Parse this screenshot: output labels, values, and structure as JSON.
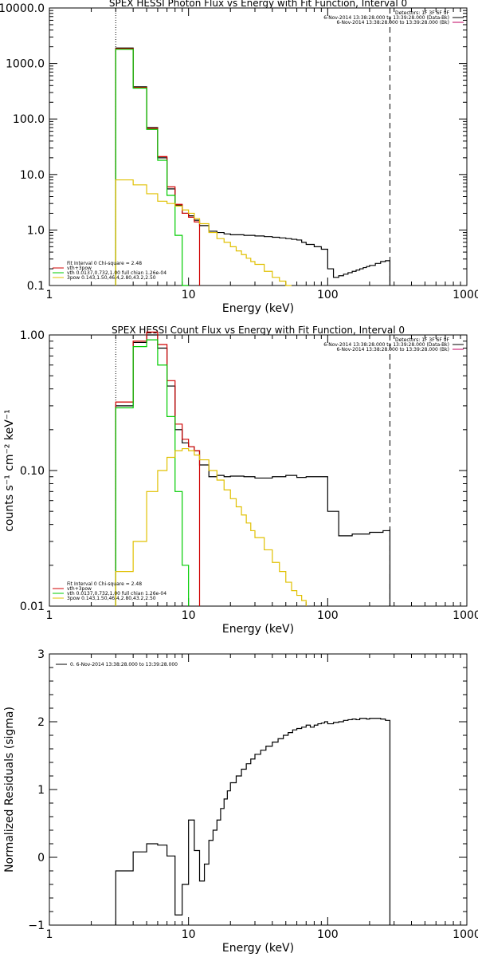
{
  "chart_data": [
    {
      "type": "line",
      "title": "SPEX HESSI Photon Flux vs Energy with Fit Function, Interval 0",
      "xlabel": "Energy (keV)",
      "ylabel": "",
      "xscale": "log",
      "yscale": "log",
      "xlim": [
        1,
        1000
      ],
      "ylim": [
        0.1,
        10000
      ],
      "xticks": [
        1,
        10,
        100,
        1000
      ],
      "xtick_labels": [
        "1",
        "10",
        "100",
        "1000"
      ],
      "yticks": [
        0.1,
        1,
        10,
        100,
        1000,
        10000
      ],
      "ytick_labels": [
        "0.1",
        "1.0",
        "10.0",
        "100.0",
        "1000.0",
        "10000.0"
      ],
      "vlines": [
        {
          "x": 3,
          "style": "dotted"
        },
        {
          "x": 280,
          "style": "dashed"
        }
      ],
      "legend_top": [
        "Detectors: 1F 3F 6F 9F",
        "6-Nov-2014 13:38:28.000 to 13:39:28.000 (Data-Bk)",
        "6-Nov-2014 13:38:28.000 to 13:39:28.000 (Bk)"
      ],
      "legend_bottom": [
        "Fit Interval 0   Chi-square = 2.48",
        "vth+3pow",
        "vth 0.0137,0.732,1.00  full chian 1.26e-04",
        "3pow 0.143,1.50,46.4,2.80,43.2,2.50"
      ],
      "series": [
        {
          "name": "Data-Bk",
          "color": "#000000",
          "step": true,
          "x": [
            3,
            4,
            5,
            6,
            7,
            8,
            9,
            10,
            11,
            12,
            14,
            16,
            18,
            20,
            25,
            30,
            35,
            40,
            45,
            50,
            55,
            60,
            65,
            70,
            80,
            90,
            100,
            110,
            120,
            130,
            140,
            150,
            160,
            170,
            180,
            190,
            200,
            220,
            240,
            260,
            280
          ],
          "y": [
            1900,
            380,
            70,
            20,
            5.5,
            2.8,
            2.0,
            1.8,
            1.5,
            1.2,
            0.95,
            0.9,
            0.85,
            0.82,
            0.8,
            0.78,
            0.76,
            0.74,
            0.72,
            0.7,
            0.68,
            0.66,
            0.6,
            0.55,
            0.5,
            0.45,
            0.2,
            0.14,
            0.15,
            0.16,
            0.17,
            0.18,
            0.19,
            0.2,
            0.21,
            0.22,
            0.23,
            0.25,
            0.27,
            0.28,
            0.28
          ]
        },
        {
          "name": "vth+3pow",
          "color": "#d00000",
          "step": true,
          "x": [
            3,
            4,
            5,
            6,
            7,
            8,
            9,
            10,
            11,
            12
          ],
          "y": [
            1850,
            370,
            68,
            21,
            6.0,
            2.9,
            2.0,
            1.7,
            1.4,
            1.1
          ]
        },
        {
          "name": "vth",
          "color": "#00cc00",
          "step": true,
          "x": [
            3,
            4,
            5,
            6,
            7,
            8,
            9,
            10
          ],
          "y": [
            1800,
            360,
            65,
            18,
            4.2,
            0.8,
            0.1,
            0.1
          ]
        },
        {
          "name": "3pow",
          "color": "#e0c000",
          "step": true,
          "x": [
            3,
            4,
            5,
            6,
            7,
            8,
            9,
            10,
            11,
            12,
            14,
            16,
            18,
            20,
            22,
            24,
            26,
            28,
            30,
            35,
            40,
            45,
            50,
            55
          ],
          "y": [
            8,
            6.5,
            4.5,
            3.3,
            3.0,
            2.7,
            2.3,
            2.0,
            1.6,
            1.3,
            0.9,
            0.7,
            0.6,
            0.5,
            0.42,
            0.36,
            0.31,
            0.27,
            0.24,
            0.18,
            0.14,
            0.12,
            0.1,
            0.1
          ]
        }
      ]
    },
    {
      "type": "line",
      "title": "SPEX HESSI Count Flux vs Energy with Fit Function, Interval 0",
      "xlabel": "Energy (keV)",
      "ylabel": "counts s⁻¹ cm⁻² keV⁻¹",
      "xscale": "log",
      "yscale": "log",
      "xlim": [
        1,
        1000
      ],
      "ylim": [
        0.01,
        1.0
      ],
      "xticks": [
        1,
        10,
        100,
        1000
      ],
      "xtick_labels": [
        "1",
        "10",
        "100",
        "1000"
      ],
      "yticks": [
        0.01,
        0.1,
        1.0
      ],
      "ytick_labels": [
        "0.01",
        "0.10",
        "1.00"
      ],
      "vlines": [
        {
          "x": 3,
          "style": "dotted"
        },
        {
          "x": 280,
          "style": "dashed"
        }
      ],
      "legend_top": [
        "Detectors: 1F 3F 6F 9F",
        "6-Nov-2014 13:38:28.000 to 13:39:28.000 (Data-Bk)",
        "6-Nov-2014 13:38:28.000 to 13:39:28.000 (Bk)"
      ],
      "legend_bottom": [
        "Fit Interval 0   Chi-square = 2.48",
        "vth+3pow",
        "vth 0.0137,0.732,1.00  full chian 1.26e-04",
        "3pow 0.143,1.50,46.4,2.80,43.2,2.50"
      ],
      "series": [
        {
          "name": "Data-Bk",
          "color": "#000000",
          "step": true,
          "x": [
            3,
            4,
            5,
            6,
            7,
            8,
            9,
            10,
            11,
            12,
            14,
            16,
            18,
            20,
            25,
            30,
            40,
            50,
            60,
            70,
            80,
            90,
            100,
            120,
            150,
            200,
            250,
            280
          ],
          "y": [
            0.3,
            0.88,
            1.0,
            0.8,
            0.42,
            0.2,
            0.16,
            0.15,
            0.14,
            0.11,
            0.09,
            0.092,
            0.09,
            0.091,
            0.09,
            0.088,
            0.09,
            0.092,
            0.089,
            0.09,
            0.09,
            0.09,
            0.05,
            0.033,
            0.034,
            0.035,
            0.036,
            0.037
          ]
        },
        {
          "name": "vth+3pow",
          "color": "#d00000",
          "step": true,
          "x": [
            3,
            4,
            5,
            6,
            7,
            8,
            9,
            10,
            11,
            12
          ],
          "y": [
            0.32,
            0.9,
            1.05,
            0.85,
            0.46,
            0.22,
            0.17,
            0.15,
            0.14,
            0.12
          ]
        },
        {
          "name": "vth",
          "color": "#00cc00",
          "step": true,
          "x": [
            3,
            4,
            5,
            6,
            7,
            8,
            9,
            10
          ],
          "y": [
            0.29,
            0.82,
            0.92,
            0.6,
            0.25,
            0.07,
            0.02,
            0.01
          ]
        },
        {
          "name": "3pow",
          "color": "#e0c000",
          "step": true,
          "x": [
            3,
            4,
            5,
            6,
            7,
            8,
            9,
            10,
            11,
            12,
            14,
            16,
            18,
            20,
            22,
            24,
            26,
            28,
            30,
            35,
            40,
            45,
            50,
            55,
            60,
            65,
            70
          ],
          "y": [
            0.018,
            0.03,
            0.07,
            0.1,
            0.125,
            0.14,
            0.145,
            0.14,
            0.13,
            0.12,
            0.1,
            0.085,
            0.072,
            0.062,
            0.054,
            0.047,
            0.041,
            0.036,
            0.032,
            0.026,
            0.021,
            0.018,
            0.015,
            0.013,
            0.012,
            0.011,
            0.01
          ]
        }
      ]
    },
    {
      "type": "line",
      "title": "",
      "xlabel": "Energy (keV)",
      "ylabel": "Normalized Residuals (sigma)",
      "xscale": "log",
      "yscale": "linear",
      "xlim": [
        1,
        1000
      ],
      "ylim": [
        -1,
        3
      ],
      "xticks": [
        1,
        10,
        100,
        1000
      ],
      "xtick_labels": [
        "1",
        "10",
        "100",
        "1000"
      ],
      "yticks": [
        -1,
        0,
        1,
        2,
        3
      ],
      "ytick_labels": [
        "−1",
        "0",
        "1",
        "2",
        "3"
      ],
      "legend": [
        "0.  6-Nov-2014 13:38:28.000 to 13:39:28.000"
      ],
      "series": [
        {
          "name": "0.",
          "color": "#000000",
          "step": true,
          "x": [
            3,
            4,
            5,
            6,
            7,
            8,
            9,
            10,
            11,
            12,
            13,
            14,
            15,
            16,
            17,
            18,
            19,
            20,
            22,
            24,
            26,
            28,
            30,
            33,
            36,
            40,
            44,
            48,
            52,
            56,
            60,
            65,
            70,
            75,
            80,
            85,
            90,
            95,
            100,
            110,
            120,
            130,
            140,
            150,
            160,
            170,
            180,
            190,
            200,
            220,
            240,
            260,
            280
          ],
          "y": [
            -0.2,
            0.08,
            0.2,
            0.18,
            0.02,
            -0.85,
            -0.4,
            0.55,
            0.1,
            -0.35,
            -0.1,
            0.25,
            0.4,
            0.55,
            0.72,
            0.86,
            0.98,
            1.1,
            1.2,
            1.3,
            1.38,
            1.45,
            1.52,
            1.58,
            1.64,
            1.7,
            1.75,
            1.8,
            1.84,
            1.88,
            1.9,
            1.92,
            1.95,
            1.92,
            1.95,
            1.97,
            1.98,
            2.0,
            1.97,
            1.99,
            2.0,
            2.02,
            2.03,
            2.04,
            2.03,
            2.05,
            2.05,
            2.04,
            2.05,
            2.05,
            2.04,
            2.02,
            2.02
          ]
        }
      ]
    }
  ]
}
